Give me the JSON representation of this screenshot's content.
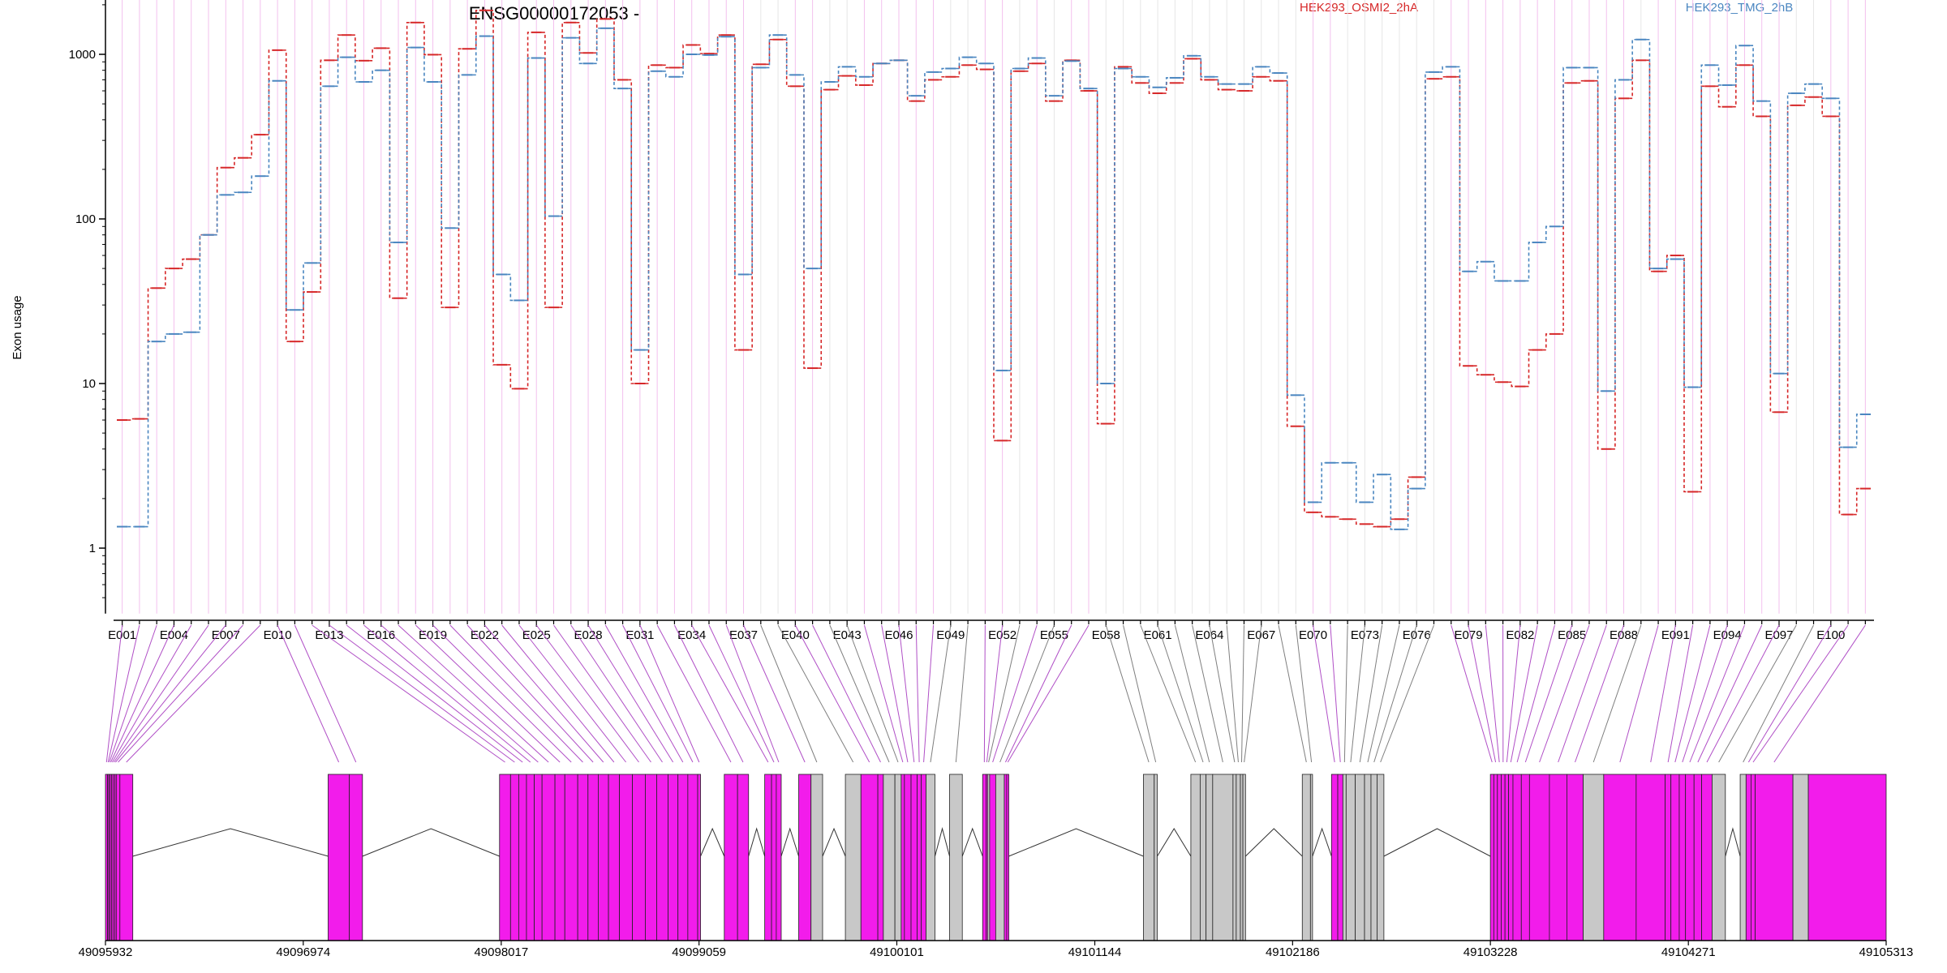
{
  "chart_data": {
    "type": "line",
    "title": "ENSG00000172053 -",
    "ylabel": "Exon usage",
    "yscale": "log",
    "ylim": [
      0.4,
      2500
    ],
    "yticks": [
      "1",
      "10",
      "100",
      "1000"
    ],
    "grid": true,
    "legend_position": "top",
    "series": [
      {
        "name": "HEK293_OSMI2_2hA",
        "color": "#d62728",
        "values": [
          6,
          6.1,
          38,
          50,
          57,
          80,
          205,
          235,
          325,
          1060,
          18,
          36,
          920,
          1310,
          915,
          1090,
          33,
          1560,
          995,
          29,
          1080,
          1850,
          13,
          9.3,
          1360,
          29,
          1560,
          1020,
          1640,
          700,
          10,
          860,
          830,
          1140,
          1010,
          1310,
          16,
          870,
          1230,
          640,
          12.4,
          610,
          740,
          650,
          880,
          920,
          520,
          700,
          730,
          860,
          810,
          4.5,
          790,
          880,
          520,
          920,
          600,
          5.7,
          840,
          670,
          580,
          670,
          940,
          700,
          610,
          600,
          730,
          690,
          5.5,
          1.65,
          1.55,
          1.5,
          1.4,
          1.35,
          1.5,
          2.7,
          710,
          730,
          12.8,
          11.3,
          10.2,
          9.6,
          16,
          20,
          670,
          690,
          4,
          540,
          920,
          48,
          60,
          2.2,
          640,
          480,
          860,
          420,
          6.7,
          490,
          550,
          420,
          1.6,
          2.3
        ]
      },
      {
        "name": "HEK293_TMG_2hB",
        "color": "#4a86c0",
        "values": [
          1.35,
          1.35,
          18,
          20,
          20.5,
          80,
          140,
          145,
          182,
          690,
          28,
          54,
          640,
          960,
          680,
          800,
          72,
          1100,
          680,
          88,
          750,
          1290,
          46,
          32,
          950,
          104,
          1260,
          880,
          1440,
          620,
          16,
          790,
          730,
          1000,
          990,
          1280,
          46,
          830,
          1310,
          750,
          50,
          680,
          840,
          730,
          880,
          920,
          560,
          780,
          820,
          960,
          880,
          12,
          820,
          950,
          560,
          910,
          620,
          10,
          820,
          730,
          630,
          720,
          980,
          730,
          660,
          660,
          840,
          770,
          8.5,
          1.9,
          3.3,
          3.3,
          1.9,
          2.8,
          1.3,
          2.3,
          780,
          840,
          48,
          55,
          42,
          42,
          72,
          90,
          830,
          830,
          9,
          700,
          1230,
          50,
          57,
          9.5,
          860,
          650,
          1130,
          520,
          11.5,
          580,
          660,
          540,
          4.1,
          6.5
        ]
      }
    ],
    "x_tick_labels": [
      "E001",
      "E004",
      "E007",
      "E010",
      "E013",
      "E016",
      "E019",
      "E022",
      "E025",
      "E028",
      "E031",
      "E034",
      "E037",
      "E040",
      "E043",
      "E046",
      "E049",
      "E052",
      "E055",
      "E058",
      "E061",
      "E064",
      "E067",
      "E070",
      "E073",
      "E076",
      "E079",
      "E082",
      "E085",
      "E088",
      "E091",
      "E094",
      "E097",
      "E100"
    ],
    "genomic_axis": {
      "range": [
        49095932,
        49105313
      ],
      "tick_labels": [
        "49095932",
        "49096974",
        "49098017",
        "49099059",
        "49100101",
        "49101144",
        "49102186",
        "49103228",
        "49104271",
        "49105313"
      ]
    },
    "gene_model": {
      "colors": {
        "highlighted": "#f21ceb",
        "other": "#c8c8c8",
        "link_highlighted": "#b04fc6",
        "link_other": "#7f7f7f",
        "grid_highlighted": "#f3c0ee",
        "grid_other": "#e6e6e6"
      },
      "exons": [
        {
          "start": 49095932,
          "end": 49095943,
          "h": true
        },
        {
          "start": 49095943,
          "end": 49095949,
          "h": true
        },
        {
          "start": 49095949,
          "end": 49095956,
          "h": true
        },
        {
          "start": 49095956,
          "end": 49095964,
          "h": true
        },
        {
          "start": 49095964,
          "end": 49095972,
          "h": true
        },
        {
          "start": 49095972,
          "end": 49095981,
          "h": true
        },
        {
          "start": 49095981,
          "end": 49095989,
          "h": true
        },
        {
          "start": 49095989,
          "end": 49096008,
          "h": true
        },
        {
          "start": 49096008,
          "end": 49096076,
          "h": true
        },
        {
          "start": 49097105,
          "end": 49097217,
          "h": true
        },
        {
          "start": 49097217,
          "end": 49097286,
          "h": true
        },
        {
          "start": 49098008,
          "end": 49098066,
          "h": true
        },
        {
          "start": 49098066,
          "end": 49098109,
          "h": true
        },
        {
          "start": 49098109,
          "end": 49098150,
          "h": true
        },
        {
          "start": 49098150,
          "end": 49098191,
          "h": true
        },
        {
          "start": 49098191,
          "end": 49098232,
          "h": true
        },
        {
          "start": 49098232,
          "end": 49098300,
          "h": true
        },
        {
          "start": 49098300,
          "end": 49098352,
          "h": true
        },
        {
          "start": 49098352,
          "end": 49098420,
          "h": true
        },
        {
          "start": 49098420,
          "end": 49098474,
          "h": true
        },
        {
          "start": 49098474,
          "end": 49098528,
          "h": true
        },
        {
          "start": 49098528,
          "end": 49098582,
          "h": true
        },
        {
          "start": 49098582,
          "end": 49098640,
          "h": true
        },
        {
          "start": 49098640,
          "end": 49098708,
          "h": true
        },
        {
          "start": 49098708,
          "end": 49098776,
          "h": true
        },
        {
          "start": 49098776,
          "end": 49098836,
          "h": true
        },
        {
          "start": 49098836,
          "end": 49098896,
          "h": true
        },
        {
          "start": 49098896,
          "end": 49098948,
          "h": true
        },
        {
          "start": 49098948,
          "end": 49099000,
          "h": true
        },
        {
          "start": 49099000,
          "end": 49099052,
          "h": true
        },
        {
          "start": 49099052,
          "end": 49099067,
          "h": true
        },
        {
          "start": 49099192,
          "end": 49099262,
          "h": true
        },
        {
          "start": 49099262,
          "end": 49099320,
          "h": true
        },
        {
          "start": 49099405,
          "end": 49099441,
          "h": true
        },
        {
          "start": 49099441,
          "end": 49099466,
          "h": true
        },
        {
          "start": 49099466,
          "end": 49099492,
          "h": true
        },
        {
          "start": 49099584,
          "end": 49099649,
          "h": true
        },
        {
          "start": 49099649,
          "end": 49099710,
          "h": false
        },
        {
          "start": 49099830,
          "end": 49099912,
          "h": false
        },
        {
          "start": 49099912,
          "end": 49100001,
          "h": true
        },
        {
          "start": 49100001,
          "end": 49100030,
          "h": true
        },
        {
          "start": 49100030,
          "end": 49100091,
          "h": false
        },
        {
          "start": 49100091,
          "end": 49100124,
          "h": false
        },
        {
          "start": 49100124,
          "end": 49100141,
          "h": true
        },
        {
          "start": 49100141,
          "end": 49100176,
          "h": true
        },
        {
          "start": 49100176,
          "end": 49100208,
          "h": true
        },
        {
          "start": 49100208,
          "end": 49100230,
          "h": true
        },
        {
          "start": 49100230,
          "end": 49100255,
          "h": true
        },
        {
          "start": 49100255,
          "end": 49100302,
          "h": false
        },
        {
          "start": 49100379,
          "end": 49100446,
          "h": false
        },
        {
          "start": 49100553,
          "end": 49100571,
          "h": true
        },
        {
          "start": 49100571,
          "end": 49100579,
          "h": true
        },
        {
          "start": 49100579,
          "end": 49100590,
          "h": false
        },
        {
          "start": 49100590,
          "end": 49100622,
          "h": true
        },
        {
          "start": 49100622,
          "end": 49100667,
          "h": false
        },
        {
          "start": 49100667,
          "end": 49100680,
          "h": true
        },
        {
          "start": 49100680,
          "end": 49100691,
          "h": true
        },
        {
          "start": 49101400,
          "end": 49101457,
          "h": false
        },
        {
          "start": 49101457,
          "end": 49101473,
          "h": false
        },
        {
          "start": 49101650,
          "end": 49101699,
          "h": false
        },
        {
          "start": 49101699,
          "end": 49101730,
          "h": false
        },
        {
          "start": 49101730,
          "end": 49101765,
          "h": false
        },
        {
          "start": 49101765,
          "end": 49101872,
          "h": false
        },
        {
          "start": 49101872,
          "end": 49101889,
          "h": false
        },
        {
          "start": 49101889,
          "end": 49101911,
          "h": false
        },
        {
          "start": 49101911,
          "end": 49101924,
          "h": false
        },
        {
          "start": 49101924,
          "end": 49101938,
          "h": false
        },
        {
          "start": 49102237,
          "end": 49102280,
          "h": false
        },
        {
          "start": 49102280,
          "end": 49102291,
          "h": false
        },
        {
          "start": 49102391,
          "end": 49102424,
          "h": true
        },
        {
          "start": 49102424,
          "end": 49102451,
          "h": true
        },
        {
          "start": 49102451,
          "end": 49102468,
          "h": false
        },
        {
          "start": 49102468,
          "end": 49102516,
          "h": false
        },
        {
          "start": 49102516,
          "end": 49102565,
          "h": false
        },
        {
          "start": 49102565,
          "end": 49102599,
          "h": false
        },
        {
          "start": 49102599,
          "end": 49102631,
          "h": false
        },
        {
          "start": 49102631,
          "end": 49102667,
          "h": false
        },
        {
          "start": 49103228,
          "end": 49103246,
          "h": true
        },
        {
          "start": 49103246,
          "end": 49103265,
          "h": true
        },
        {
          "start": 49103265,
          "end": 49103285,
          "h": true
        },
        {
          "start": 49103285,
          "end": 49103305,
          "h": true
        },
        {
          "start": 49103305,
          "end": 49103324,
          "h": true
        },
        {
          "start": 49103324,
          "end": 49103347,
          "h": true
        },
        {
          "start": 49103347,
          "end": 49103391,
          "h": true
        },
        {
          "start": 49103391,
          "end": 49103434,
          "h": true
        },
        {
          "start": 49103434,
          "end": 49103539,
          "h": true
        },
        {
          "start": 49103539,
          "end": 49103631,
          "h": true
        },
        {
          "start": 49103631,
          "end": 49103717,
          "h": true
        },
        {
          "start": 49103717,
          "end": 49103825,
          "h": false
        },
        {
          "start": 49103825,
          "end": 49103996,
          "h": true
        },
        {
          "start": 49103996,
          "end": 49104149,
          "h": true
        },
        {
          "start": 49104149,
          "end": 49104179,
          "h": true
        },
        {
          "start": 49104179,
          "end": 49104223,
          "h": true
        },
        {
          "start": 49104223,
          "end": 49104256,
          "h": true
        },
        {
          "start": 49104256,
          "end": 49104301,
          "h": true
        },
        {
          "start": 49104301,
          "end": 49104341,
          "h": true
        },
        {
          "start": 49104341,
          "end": 49104396,
          "h": true
        },
        {
          "start": 49104396,
          "end": 49104466,
          "h": false
        },
        {
          "start": 49104544,
          "end": 49104575,
          "h": false
        },
        {
          "start": 49104575,
          "end": 49104601,
          "h": true
        },
        {
          "start": 49104601,
          "end": 49104623,
          "h": true
        },
        {
          "start": 49104623,
          "end": 49104822,
          "h": true
        },
        {
          "start": 49104822,
          "end": 49104903,
          "h": false
        },
        {
          "start": 49104903,
          "end": 49105313,
          "h": true
        }
      ]
    }
  }
}
